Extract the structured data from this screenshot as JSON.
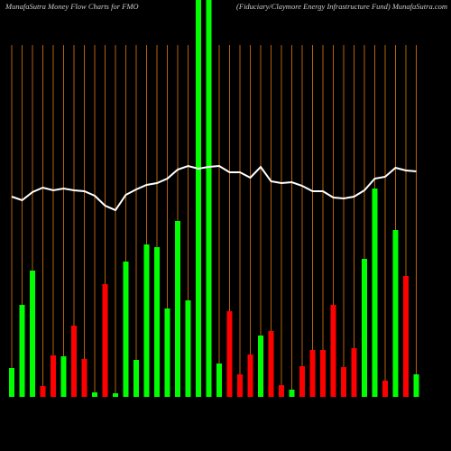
{
  "chart_data": {
    "type": "bar",
    "title": "MunafaSutra  Money Flow  Charts for FMO",
    "subtitle": "(Fiduciary/Claymore   Energy Infrastructure   Fund) MunafaSutra.com",
    "categories": [
      null,
      null,
      null,
      null,
      null,
      null,
      null,
      null,
      null,
      null,
      null,
      null,
      null,
      null,
      null,
      null,
      null,
      null,
      null,
      null,
      null,
      null,
      null,
      null,
      null,
      null,
      null,
      null,
      null,
      null,
      null,
      null,
      null,
      null,
      null,
      null,
      null,
      null,
      null,
      null
    ],
    "values": [
      32,
      102,
      140,
      12,
      46,
      45,
      79,
      42,
      5,
      125,
      4,
      150,
      41,
      169,
      166,
      98,
      195,
      107,
      440,
      440,
      37,
      95,
      25,
      47,
      68,
      73,
      13,
      8,
      34,
      52,
      52,
      102,
      33,
      54,
      153,
      231,
      18,
      185,
      134,
      25
    ],
    "colors": [
      "#00ff00",
      "#00ff00",
      "#00ff00",
      "#ff0000",
      "#ff0000",
      "#00ff00",
      "#ff0000",
      "#ff0000",
      "#00ff00",
      "#ff0000",
      "#00ff00",
      "#00ff00",
      "#00ff00",
      "#00ff00",
      "#00ff00",
      "#00ff00",
      "#00ff00",
      "#00ff00",
      "#00ff00",
      "#00ff00",
      "#00ff00",
      "#ff0000",
      "#ff0000",
      "#ff0000",
      "#00ff00",
      "#ff0000",
      "#ff0000",
      "#00ff00",
      "#ff0000",
      "#ff0000",
      "#ff0000",
      "#ff0000",
      "#ff0000",
      "#ff0000",
      "#00ff00",
      "#00ff00",
      "#ff0000",
      "#00ff00",
      "#ff0000",
      "#00ff00"
    ],
    "ylim": [
      0,
      440
    ],
    "grid": true,
    "grid_color": "#b8600a",
    "line": {
      "color": "#ffffff",
      "axis": "y2",
      "values": [
        222,
        218,
        227,
        232,
        229,
        231,
        229,
        228,
        223,
        212,
        207,
        224,
        230,
        235,
        237,
        242,
        252,
        256,
        253,
        255,
        256,
        249,
        249,
        243,
        255,
        239,
        237,
        238,
        234,
        228,
        228,
        221,
        220,
        222,
        229,
        242,
        244,
        254,
        251,
        250
      ]
    },
    "y2lim": [
      0,
      440
    ]
  }
}
